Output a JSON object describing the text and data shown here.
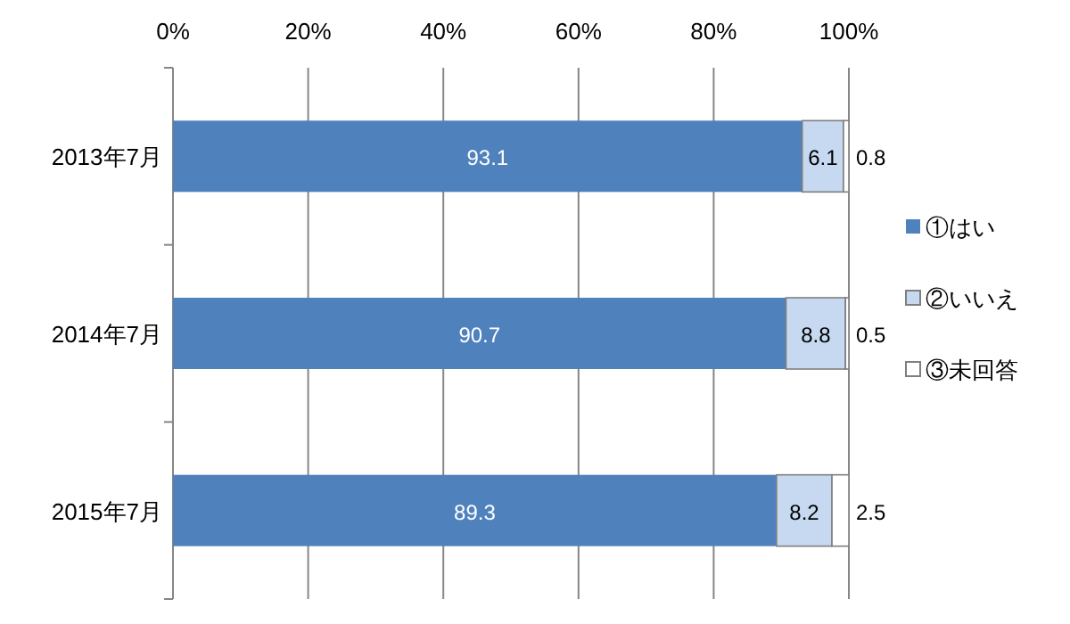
{
  "chart_data": {
    "type": "bar",
    "orientation": "horizontal",
    "stacked": true,
    "data_labels": true,
    "grid": "x",
    "legend": "right",
    "categories": [
      "2013年7月",
      "2014年7月",
      "2015年7月"
    ],
    "xlim": [
      0,
      100
    ],
    "xticks": [
      {
        "value": 0,
        "label": "0%"
      },
      {
        "value": 20,
        "label": "20%"
      },
      {
        "value": 40,
        "label": "40%"
      },
      {
        "value": 60,
        "label": "60%"
      },
      {
        "value": 80,
        "label": "80%"
      },
      {
        "value": 100,
        "label": "100%"
      }
    ],
    "series": [
      {
        "name": "①はい",
        "color": "#4f81bd",
        "values": [
          93.1,
          90.7,
          89.3
        ]
      },
      {
        "name": "②いいえ",
        "color": "#c6d9f1",
        "values": [
          6.1,
          8.8,
          8.2
        ]
      },
      {
        "name": "③未回答",
        "color": "#ffffff",
        "values": [
          0.8,
          0.5,
          2.5
        ]
      }
    ]
  }
}
